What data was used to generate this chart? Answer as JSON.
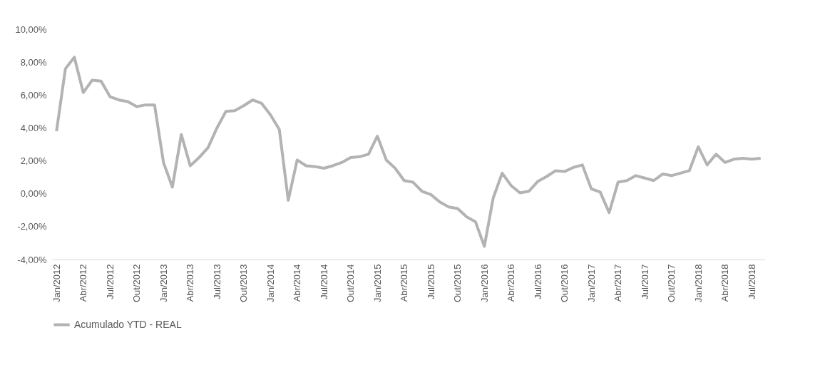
{
  "chart_data": {
    "type": "line",
    "categories": [
      "Jan/2012",
      null,
      null,
      "Abr/2012",
      null,
      null,
      "Jul/2012",
      null,
      null,
      "Out/2012",
      null,
      null,
      "Jan/2013",
      null,
      null,
      "Abr/2013",
      null,
      null,
      "Jul/2013",
      null,
      null,
      "Out/2013",
      null,
      null,
      "Jan/2014",
      null,
      null,
      "Abr/2014",
      null,
      null,
      "Jul/2014",
      null,
      null,
      "Out/2014",
      null,
      null,
      "Jan/2015",
      null,
      null,
      "Abr/2015",
      null,
      null,
      "Jul/2015",
      null,
      null,
      "Out/2015",
      null,
      null,
      "Jan/2016",
      null,
      null,
      "Abr/2016",
      null,
      null,
      "Jul/2016",
      null,
      null,
      "Out/2016",
      null,
      null,
      "Jan/2017",
      null,
      null,
      "Abr/2017",
      null,
      null,
      "Jul/2017",
      null,
      null,
      "Out/2017",
      null,
      null,
      "Jan/2018",
      null,
      null,
      "Abr/2018",
      null,
      null,
      "Jul/2018",
      null
    ],
    "series": [
      {
        "name": "Acumulado YTD - REAL",
        "color": "#b3b3b3",
        "values": [
          3.8,
          7.6,
          8.3,
          6.15,
          6.9,
          6.85,
          5.9,
          5.7,
          5.6,
          5.3,
          5.4,
          5.4,
          1.9,
          0.4,
          3.6,
          1.7,
          2.2,
          2.8,
          4.0,
          5.0,
          5.05,
          5.35,
          5.7,
          5.5,
          4.8,
          3.9,
          -0.4,
          2.05,
          1.7,
          1.65,
          1.55,
          1.7,
          1.9,
          2.2,
          2.25,
          2.4,
          3.5,
          2.05,
          1.55,
          0.8,
          0.7,
          0.15,
          -0.05,
          -0.5,
          -0.8,
          -0.9,
          -1.4,
          -1.7,
          -3.2,
          -0.25,
          1.25,
          0.5,
          0.05,
          0.15,
          0.75,
          1.05,
          1.4,
          1.35,
          1.6,
          1.75,
          0.3,
          0.1,
          -1.15,
          0.7,
          0.8,
          1.1,
          0.95,
          0.8,
          1.2,
          1.1,
          1.25,
          1.4,
          2.85,
          1.75,
          2.4,
          1.9,
          2.1,
          2.15,
          2.1,
          2.15
        ]
      }
    ],
    "ylim": [
      -4,
      10
    ],
    "yticks": [
      {
        "value": -4,
        "label": "-4,00%"
      },
      {
        "value": -2,
        "label": "-2,00%"
      },
      {
        "value": 0,
        "label": "0,00%"
      },
      {
        "value": 2,
        "label": "2,00%"
      },
      {
        "value": 4,
        "label": "4,00%"
      },
      {
        "value": 6,
        "label": "6,00%"
      },
      {
        "value": 8,
        "label": "8,00%"
      },
      {
        "value": 10,
        "label": "10,00%"
      }
    ],
    "legend": "bottom",
    "line_style": "solid"
  }
}
